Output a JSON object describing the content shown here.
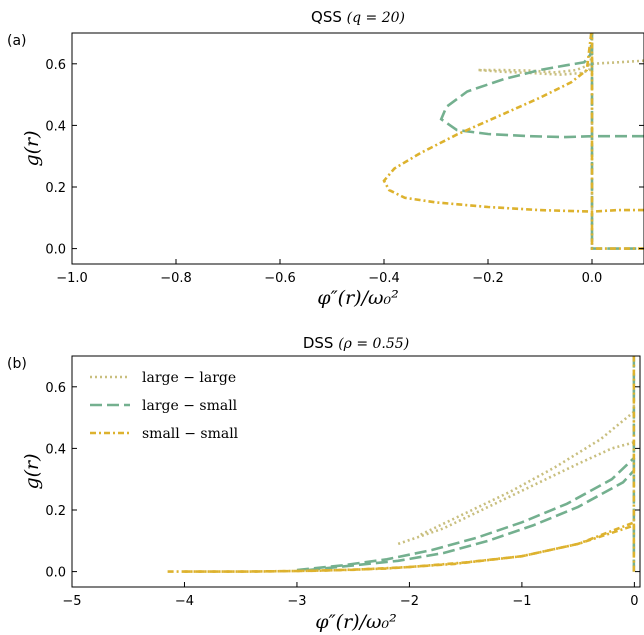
{
  "colors": {
    "large_large": "#c9bf7f",
    "large_small": "#74b08f",
    "small_small": "#ddb22e"
  },
  "chart_data": [
    {
      "type": "line",
      "panel": "(a)",
      "title_prefix": "QSS",
      "title_math": "(q = 20)",
      "xlabel": "φ″(r)/ω₀²",
      "ylabel": "g(r)",
      "xlim": [
        -1.0,
        0.1
      ],
      "ylim": [
        -0.05,
        0.7
      ],
      "xticks": [
        -1.0,
        -0.8,
        -0.6,
        -0.4,
        -0.2,
        0.0
      ],
      "xtick_labels": [
        "−1.0",
        "−0.8",
        "−0.6",
        "−0.4",
        "−0.2",
        "0.0"
      ],
      "yticks": [
        0.0,
        0.2,
        0.4,
        0.6
      ],
      "ytick_labels": [
        "0.0",
        "0.2",
        "0.4",
        "0.6"
      ],
      "series": [
        {
          "key": "large_large",
          "style": "dotted",
          "x": [
            0.1,
            0.05,
            0.0,
            -0.03,
            -0.07,
            -0.12,
            -0.18,
            -0.22,
            -0.18,
            -0.12,
            -0.06,
            -0.02,
            -0.005,
            0.0,
            0.0,
            0.0
          ],
          "y": [
            0.61,
            0.605,
            0.6,
            0.58,
            0.572,
            0.578,
            0.58,
            0.58,
            0.575,
            0.57,
            0.565,
            0.57,
            0.58,
            0.64,
            0.72,
            0.0
          ]
        },
        {
          "key": "large_small",
          "style": "dashed",
          "x": [
            0.1,
            0.05,
            0.0,
            -0.05,
            -0.12,
            -0.2,
            -0.26,
            -0.29,
            -0.28,
            -0.24,
            -0.17,
            -0.1,
            -0.05,
            -0.015,
            -0.003,
            0.0,
            0.0,
            0.0,
            0.0,
            0.03,
            0.1
          ],
          "y": [
            0.365,
            0.365,
            0.365,
            0.362,
            0.365,
            0.372,
            0.385,
            0.42,
            0.46,
            0.51,
            0.55,
            0.58,
            0.595,
            0.605,
            0.63,
            0.7,
            0.4,
            0.0,
            0.0,
            0.0,
            0.0
          ],
          "raw_pairs": true
        },
        {
          "key": "small_small",
          "style": "dashdot",
          "x": [
            0.1,
            0.05,
            0.0,
            -0.1,
            -0.2,
            -0.3,
            -0.36,
            -0.39,
            -0.4,
            -0.38,
            -0.33,
            -0.26,
            -0.18,
            -0.1,
            -0.04,
            -0.01,
            0.0,
            0.0,
            0.0,
            0.02,
            0.1
          ],
          "y": [
            0.125,
            0.125,
            0.12,
            0.125,
            0.135,
            0.15,
            0.165,
            0.19,
            0.22,
            0.26,
            0.31,
            0.37,
            0.43,
            0.49,
            0.54,
            0.58,
            0.72,
            0.3,
            0.0,
            0.0,
            0.0
          ],
          "raw_pairs": true
        }
      ]
    },
    {
      "type": "line",
      "panel": "(b)",
      "title_prefix": "DSS",
      "title_math": "(ρ = 0.55)",
      "xlabel": "φ″(r)/ω₀²",
      "ylabel": "g(r)",
      "xlim": [
        -5.0,
        0.05
      ],
      "ylim": [
        -0.05,
        0.7
      ],
      "xticks": [
        -5,
        -4,
        -3,
        -2,
        -1,
        0
      ],
      "xtick_labels": [
        "−5",
        "−4",
        "−3",
        "−2",
        "−1",
        "0"
      ],
      "yticks": [
        0.0,
        0.2,
        0.4,
        0.6
      ],
      "ytick_labels": [
        "0.0",
        "0.2",
        "0.4",
        "0.6"
      ],
      "legend": {
        "placement": "top-left",
        "entries": [
          {
            "key": "large_large",
            "label": "large − large",
            "style": "dotted"
          },
          {
            "key": "large_small",
            "label": "large − small",
            "style": "dashed"
          },
          {
            "key": "small_small",
            "label": "small − small",
            "style": "dashdot"
          }
        ]
      },
      "series": [
        {
          "key": "large_large",
          "style": "dotted",
          "x": [
            -2.1,
            -1.7,
            -1.3,
            -0.9,
            -0.5,
            -0.2,
            0.0
          ],
          "y": [
            0.09,
            0.14,
            0.21,
            0.28,
            0.35,
            0.4,
            0.42
          ],
          "x2": [
            -1.9,
            -1.5,
            -1.1,
            -0.7,
            -0.3,
            0.0
          ],
          "y2": [
            0.12,
            0.19,
            0.26,
            0.34,
            0.43,
            0.52
          ]
        },
        {
          "key": "large_small",
          "style": "dashed",
          "x": [
            -3.0,
            -2.6,
            -2.2,
            -1.8,
            -1.4,
            -1.0,
            -0.6,
            -0.2,
            0.0
          ],
          "y": [
            0.005,
            0.02,
            0.04,
            0.07,
            0.11,
            0.16,
            0.22,
            0.3,
            0.37
          ],
          "x2": [
            -2.9,
            -2.5,
            -2.1,
            -1.7,
            -1.3,
            -0.9,
            -0.5,
            -0.1,
            0.0
          ],
          "y2": [
            0.005,
            0.02,
            0.035,
            0.06,
            0.1,
            0.15,
            0.21,
            0.29,
            0.33
          ]
        },
        {
          "key": "small_small",
          "style": "dashdot",
          "x": [
            -4.15,
            -3.5,
            -3.0,
            -2.5,
            -2.0,
            -1.5,
            -1.0,
            -0.5,
            0.0
          ],
          "y": [
            0.0,
            0.0,
            0.002,
            0.006,
            0.015,
            0.03,
            0.05,
            0.09,
            0.15
          ],
          "x2": [
            -4.0,
            -3.4,
            -2.8,
            -2.2,
            -1.6,
            -1.0,
            -0.5,
            0.0
          ],
          "y2": [
            0.0,
            0.0,
            0.003,
            0.01,
            0.025,
            0.05,
            0.09,
            0.16
          ]
        }
      ],
      "vertical_lines_at_zero": true
    }
  ]
}
